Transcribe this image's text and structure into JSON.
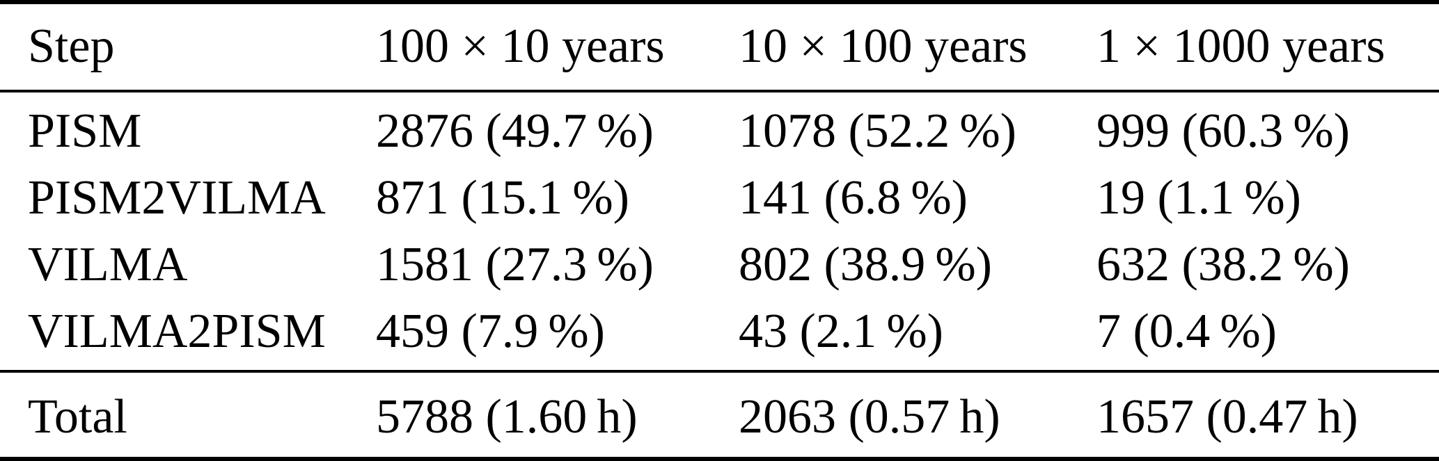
{
  "colors": {
    "background": "#ffffff",
    "text": "#000000",
    "rule": "#000000"
  },
  "table": {
    "columns": {
      "step": "Step",
      "col1": "100 × 10 years",
      "col2": "10 × 100 years",
      "col3": "1 × 1000 years"
    },
    "rows": [
      {
        "step": "PISM",
        "col1": "2876 (49.7 %)",
        "col2": "1078 (52.2 %)",
        "col3": "999 (60.3 %)"
      },
      {
        "step": "PISM2VILMA",
        "col1": "871 (15.1 %)",
        "col2": "141 (6.8 %)",
        "col3": "19 (1.1 %)"
      },
      {
        "step": "VILMA",
        "col1": "1581 (27.3 %)",
        "col2": "802 (38.9 %)",
        "col3": "632 (38.2 %)"
      },
      {
        "step": "VILMA2PISM",
        "col1": "459 (7.9 %)",
        "col2": "43 (2.1 %)",
        "col3": "7 (0.4 %)"
      }
    ],
    "total": {
      "step": "Total",
      "col1": "5788 (1.60 h)",
      "col2": "2063 (0.57 h)",
      "col3": "1657 (0.47 h)"
    }
  }
}
